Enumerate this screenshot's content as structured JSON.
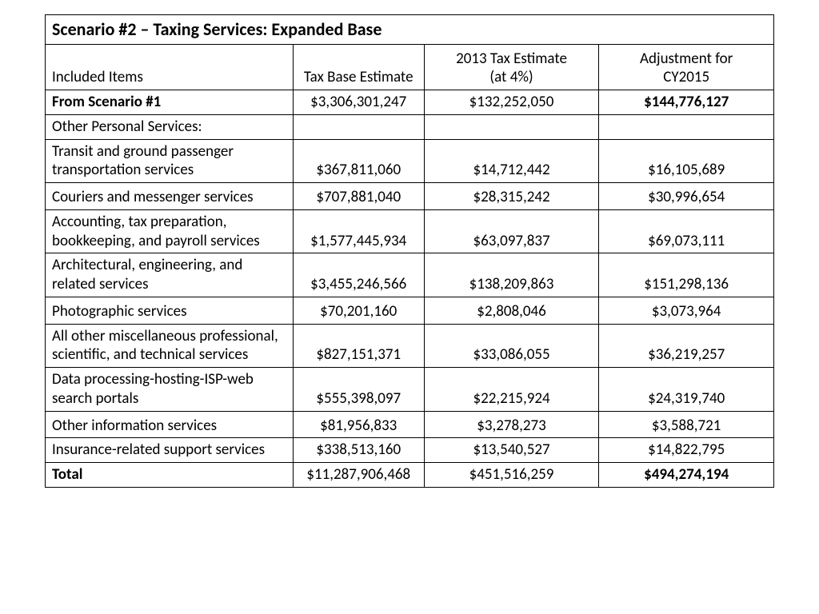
{
  "title": "Scenario #2 – Taxing Services: Expanded Base",
  "headers": {
    "c1": "Included Items",
    "c2": "Tax Base Estimate",
    "c3_top": "2013 Tax Estimate",
    "c3_bot": "(at 4%)",
    "c4_top": "Adjustment for",
    "c4_bot": "CY2015"
  },
  "rows": [
    {
      "label": "From Scenario #1",
      "base": "$3,306,301,247",
      "tax": "$132,252,050",
      "adj": "$144,776,127",
      "label_red": true,
      "adj_red": true
    },
    {
      "label": "Other Personal Services:",
      "base": "",
      "tax": "",
      "adj": ""
    },
    {
      "label": "Transit and ground passenger transportation services",
      "base": "$367,811,060",
      "tax": "$14,712,442",
      "adj": "$16,105,689"
    },
    {
      "label": "Couriers and messenger services",
      "base": "$707,881,040",
      "tax": "$28,315,242",
      "adj": "$30,996,654",
      "tall": true
    },
    {
      "label": "Accounting, tax preparation, bookkeeping, and payroll services",
      "base": "$1,577,445,934",
      "tax": "$63,097,837",
      "adj": "$69,073,111"
    },
    {
      "label": "Architectural, engineering, and related services",
      "base": "$3,455,246,566",
      "tax": "$138,209,863",
      "adj": "$151,298,136"
    },
    {
      "label": "Photographic services",
      "base": "$70,201,160",
      "tax": "$2,808,046",
      "adj": "$3,073,964",
      "tall": true
    },
    {
      "label": "All other miscellaneous professional, scientific, and technical services",
      "base": "$827,151,371",
      "tax": "$33,086,055",
      "adj": "$36,219,257"
    },
    {
      "label": "Data processing-hosting-ISP-web search portals",
      "base": "$555,398,097",
      "tax": "$22,215,924",
      "adj": "$24,319,740"
    },
    {
      "label": "Other information services",
      "base": "$81,956,833",
      "tax": "$3,278,273",
      "adj": "$3,588,721",
      "tall": true
    },
    {
      "label": "Insurance-related support services",
      "base": "$338,513,160",
      "tax": "$13,540,527",
      "adj": "$14,822,795"
    },
    {
      "label": "Total",
      "base": "$11,287,906,468",
      "tax": "$451,516,259",
      "adj": "$494,274,194",
      "label_red": true,
      "adj_red": true
    }
  ],
  "colors": {
    "text": "#000000",
    "highlight": "#d32020",
    "border": "#000000",
    "background": "#ffffff"
  }
}
